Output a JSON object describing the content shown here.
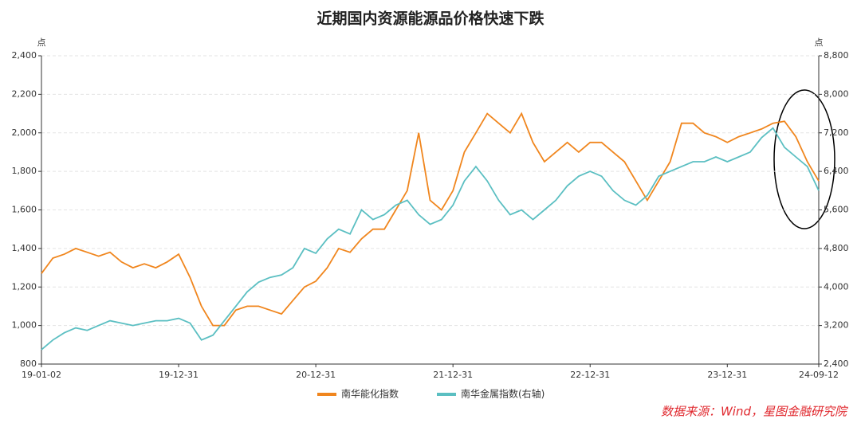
{
  "chart_data": {
    "type": "line",
    "title": "近期国内资源能源品价格快速下跌",
    "y_unit": "点",
    "y2_unit": "点",
    "source": "数据来源：Wind，星图金融研究院",
    "categories": [
      "19-01-02",
      null,
      null,
      null,
      null,
      null,
      null,
      null,
      null,
      null,
      null,
      null,
      "19-12-31",
      null,
      null,
      null,
      null,
      null,
      null,
      null,
      null,
      null,
      null,
      null,
      "20-12-31",
      null,
      null,
      null,
      null,
      null,
      null,
      null,
      null,
      null,
      null,
      null,
      "21-12-31",
      null,
      null,
      null,
      null,
      null,
      null,
      null,
      null,
      null,
      null,
      null,
      "22-12-31",
      null,
      null,
      null,
      null,
      null,
      null,
      null,
      null,
      null,
      null,
      null,
      "23-12-31",
      null,
      null,
      null,
      null,
      null,
      null,
      null,
      "24-09-12"
    ],
    "series": [
      {
        "name": "南华能化指数",
        "color": "#f0861e",
        "values": [
          1270,
          1350,
          1370,
          1400,
          1380,
          1360,
          1380,
          1330,
          1300,
          1320,
          1300,
          1330,
          1370,
          1250,
          1100,
          1000,
          1000,
          1080,
          1100,
          1100,
          1080,
          1060,
          1130,
          1200,
          1230,
          1300,
          1400,
          1380,
          1450,
          1500,
          1500,
          1600,
          1700,
          2000,
          1650,
          1600,
          1700,
          1900,
          2000,
          2100,
          2050,
          2000,
          2100,
          1950,
          1850,
          1900,
          1950,
          1900,
          1950,
          1950,
          1900,
          1850,
          1750,
          1650,
          1750,
          1850,
          2050,
          2050,
          2000,
          1980,
          1950,
          1980,
          2000,
          2020,
          2050,
          2060,
          1980,
          1850,
          1750
        ]
      },
      {
        "name": "南华金属指数(右轴)",
        "color": "#5bbfc2",
        "axis": "y2",
        "values": [
          2700,
          2900,
          3050,
          3150,
          3100,
          3200,
          3300,
          3250,
          3200,
          3250,
          3300,
          3300,
          3350,
          3250,
          2900,
          3000,
          3300,
          3600,
          3900,
          4100,
          4200,
          4250,
          4400,
          4800,
          4700,
          5000,
          5200,
          5100,
          5600,
          5400,
          5500,
          5700,
          5800,
          5500,
          5300,
          5400,
          5700,
          6200,
          6500,
          6200,
          5800,
          5500,
          5600,
          5400,
          5600,
          5800,
          6100,
          6300,
          6400,
          6300,
          6000,
          5800,
          5700,
          5900,
          6300,
          6400,
          6500,
          6600,
          6600,
          6700,
          6600,
          6700,
          6800,
          7100,
          7300,
          6900,
          6700,
          6500,
          6000
        ]
      }
    ],
    "ylim": [
      800,
      2400
    ],
    "yticks": [
      800,
      {
        "value": 1000,
        "label": "1,000"
      },
      {
        "value": 1200,
        "label": "1,200"
      },
      {
        "value": 1400,
        "label": "1,400"
      },
      {
        "value": 1600,
        "label": "1,600"
      },
      {
        "value": 1800,
        "label": "1,800"
      },
      {
        "value": 2000,
        "label": "2,000"
      },
      {
        "value": 2200,
        "label": "2,200"
      },
      {
        "value": 2400,
        "label": "2,400"
      }
    ],
    "y2lim": [
      2400,
      8800
    ],
    "y2ticks": [
      {
        "value": 2400,
        "label": "2,400"
      },
      {
        "value": 3200,
        "label": "3,200"
      },
      {
        "value": 4000,
        "label": "4,000"
      },
      {
        "value": 4800,
        "label": "4,800"
      },
      {
        "value": 5600,
        "label": "5,600"
      },
      {
        "value": 6400,
        "label": "6,400"
      },
      {
        "value": 7200,
        "label": "7,200"
      },
      {
        "value": 8000,
        "label": "8,000"
      },
      {
        "value": 8800,
        "label": "8,800"
      }
    ],
    "grid": true
  }
}
